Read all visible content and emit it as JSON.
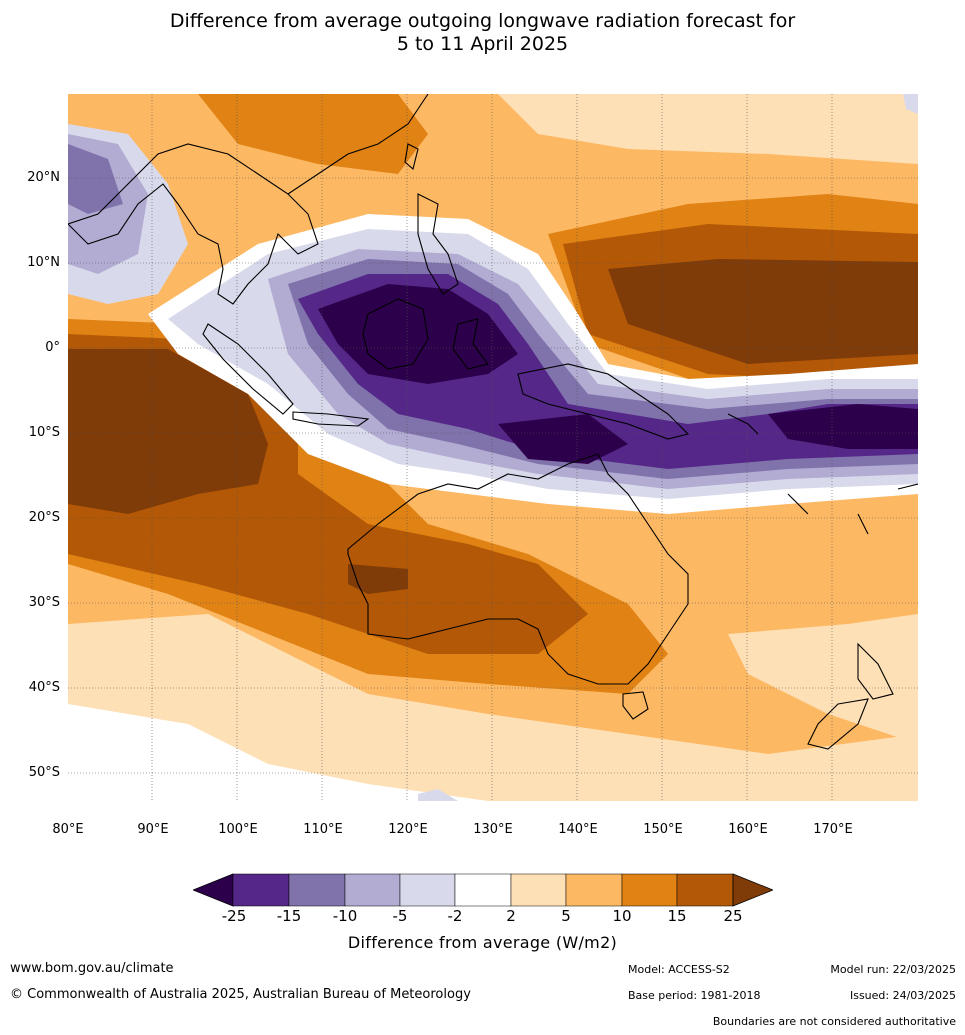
{
  "title_line1": "Difference from average outgoing longwave radiation forecast for",
  "title_line2": "5 to 11 April 2025",
  "lat_labels": [
    "20°N",
    "10°N",
    "0°",
    "10°S",
    "20°S",
    "30°S",
    "40°S",
    "50°S"
  ],
  "lon_labels": [
    "80°E",
    "90°E",
    "100°E",
    "110°E",
    "120°E",
    "130°E",
    "140°E",
    "150°E",
    "160°E",
    "170°E"
  ],
  "colorbar": {
    "ticks": [
      "-25",
      "-15",
      "-10",
      "-5",
      "-2",
      "2",
      "5",
      "10",
      "15",
      "25"
    ],
    "colors": [
      "#2d004b",
      "#542788",
      "#8073ac",
      "#b2abd2",
      "#d8daeb",
      "#ffffff",
      "#fee0b6",
      "#fdb863",
      "#e08214",
      "#b35806",
      "#7f3b08"
    ],
    "label": "Difference from average (W/m2)"
  },
  "footer": {
    "website": "www.bom.gov.au/climate",
    "copyright": "© Commonwealth of Australia 2025, Australian Bureau of Meteorology",
    "model": "Model: ACCESS-S2",
    "base_period": "Base period: 1981-2018",
    "model_run": "Model run: 22/03/2025",
    "issued": "Issued: 24/03/2025",
    "disclaimer": "Boundaries are not considered authoritative"
  }
}
